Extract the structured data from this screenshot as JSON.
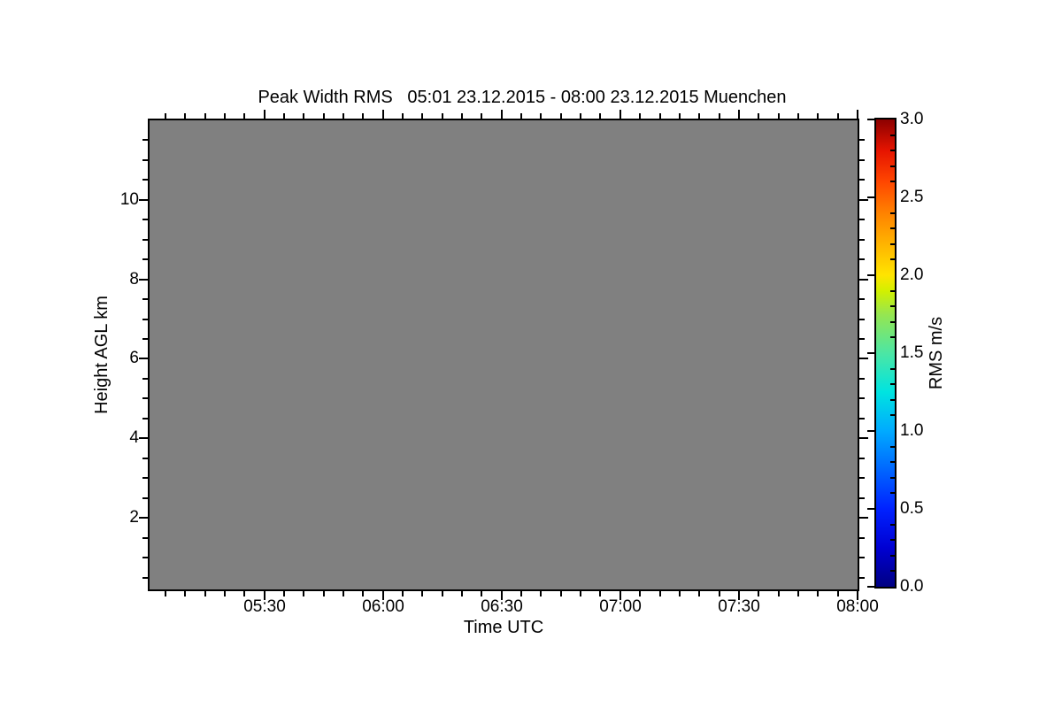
{
  "chart_data": {
    "type": "heatmap",
    "title": "Peak Width RMS   05:01 23.12.2015 - 08:00 23.12.2015 Muenchen",
    "xlabel": "Time UTC",
    "ylabel": "Height AGL km",
    "x_start": "05:01",
    "x_end": "08:00",
    "x_span_minutes": 179,
    "x_ticks": [
      {
        "label": "05:30",
        "minutes": 29
      },
      {
        "label": "06:00",
        "minutes": 59
      },
      {
        "label": "06:30",
        "minutes": 89
      },
      {
        "label": "07:00",
        "minutes": 119
      },
      {
        "label": "07:30",
        "minutes": 149
      },
      {
        "label": "08:00",
        "minutes": 179
      }
    ],
    "x_minor_step_minutes": 5,
    "ylim": [
      0.2,
      12.0
    ],
    "y_ticks": [
      2,
      4,
      6,
      8,
      10
    ],
    "y_minor_step": 0.5,
    "grid": false,
    "data_present": false,
    "no_data_fill": "#808080",
    "frame_color": "#000000",
    "text_color": "#000000",
    "legend_position": "right-colorbar",
    "colorbar": {
      "label": "RMS m/s",
      "range": [
        0.0,
        3.0
      ],
      "tick_labels": [
        "0.0",
        "0.5",
        "1.0",
        "1.5",
        "2.0",
        "2.5",
        "3.0"
      ],
      "tick_values": [
        0.0,
        0.5,
        1.0,
        1.5,
        2.0,
        2.5,
        3.0
      ],
      "minor_step": 0.1,
      "colormap": "rainbow",
      "gradient_stops": [
        {
          "v": 0.0,
          "c": "#000082"
        },
        {
          "v": 0.25,
          "c": "#0000D2"
        },
        {
          "v": 0.5,
          "c": "#0022FF"
        },
        {
          "v": 0.75,
          "c": "#0066FF"
        },
        {
          "v": 1.0,
          "c": "#00AAFF"
        },
        {
          "v": 1.25,
          "c": "#00E4E0"
        },
        {
          "v": 1.5,
          "c": "#4CE6A4"
        },
        {
          "v": 1.75,
          "c": "#96E650"
        },
        {
          "v": 1.9,
          "c": "#D2F000"
        },
        {
          "v": 2.0,
          "c": "#FFE400"
        },
        {
          "v": 2.2,
          "c": "#FFB400"
        },
        {
          "v": 2.4,
          "c": "#FF8200"
        },
        {
          "v": 2.6,
          "c": "#FF4600"
        },
        {
          "v": 2.8,
          "c": "#E61400"
        },
        {
          "v": 3.0,
          "c": "#8C0000"
        }
      ]
    }
  }
}
